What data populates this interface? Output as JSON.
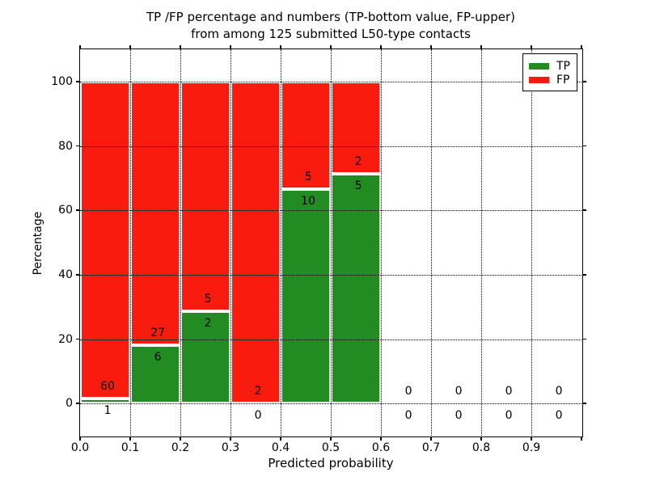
{
  "figure": {
    "title_line1": "TP /FP percentage and numbers (TP-bottom value, FP-upper)",
    "title_line2": "from among 125 submitted L50-type contacts",
    "xlabel": "Predicted probability",
    "ylabel": "Percentage",
    "legend": [
      {
        "label": "TP",
        "color": "#228b22"
      },
      {
        "label": "FP",
        "color": "#fa1b0f"
      }
    ]
  },
  "chart_data": {
    "type": "bar",
    "stacked": true,
    "title": "TP /FP percentage and numbers (TP-bottom value, FP-upper) from among 125 submitted L50-type contacts",
    "xlabel": "Predicted probability",
    "ylabel": "Percentage",
    "total_contacts": 125,
    "xlim": [
      0,
      1
    ],
    "ylim": [
      -10,
      110
    ],
    "grid": true,
    "grid_style": "dotted",
    "legend_position": "upper right",
    "xticks": [
      "0.0",
      "0.1",
      "0.2",
      "0.3",
      "0.4",
      "0.5",
      "0.6",
      "0.7",
      "0.8",
      "0.9"
    ],
    "yticks": [
      "0",
      "20",
      "40",
      "60",
      "80",
      "100"
    ],
    "colors": {
      "tp": "#228b22",
      "fp": "#fa1b0f",
      "bar_edge": "#ffffff",
      "grid": "#000000",
      "text": "#000000"
    },
    "bins": [
      {
        "range": [
          0.0,
          0.1
        ],
        "tp_count": 1,
        "fp_count": 60,
        "tp_pct": 1.64,
        "fp_pct": 98.36
      },
      {
        "range": [
          0.1,
          0.2
        ],
        "tp_count": 6,
        "fp_count": 27,
        "tp_pct": 18.18,
        "fp_pct": 81.82
      },
      {
        "range": [
          0.2,
          0.3
        ],
        "tp_count": 2,
        "fp_count": 5,
        "tp_pct": 28.57,
        "fp_pct": 71.43
      },
      {
        "range": [
          0.3,
          0.4
        ],
        "tp_count": 0,
        "fp_count": 2,
        "tp_pct": 0,
        "fp_pct": 100
      },
      {
        "range": [
          0.4,
          0.5
        ],
        "tp_count": 10,
        "fp_count": 5,
        "tp_pct": 66.67,
        "fp_pct": 33.33
      },
      {
        "range": [
          0.5,
          0.6
        ],
        "tp_count": 5,
        "fp_count": 2,
        "tp_pct": 71.43,
        "fp_pct": 28.57
      },
      {
        "range": [
          0.6,
          0.7
        ],
        "tp_count": 0,
        "fp_count": 0,
        "tp_pct": 0,
        "fp_pct": 0
      },
      {
        "range": [
          0.7,
          0.8
        ],
        "tp_count": 0,
        "fp_count": 0,
        "tp_pct": 0,
        "fp_pct": 0
      },
      {
        "range": [
          0.8,
          0.9
        ],
        "tp_count": 0,
        "fp_count": 0,
        "tp_pct": 0,
        "fp_pct": 0
      },
      {
        "range": [
          0.9,
          1.0
        ],
        "tp_count": 0,
        "fp_count": 0,
        "tp_pct": 0,
        "fp_pct": 0
      }
    ]
  }
}
